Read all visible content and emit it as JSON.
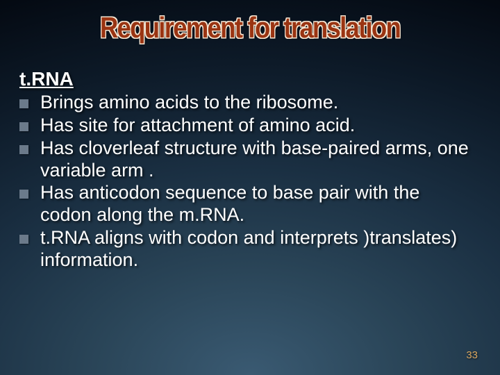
{
  "title": "Requirement for translation",
  "section_header": "t.RNA",
  "bullets": [
    "Brings amino acids to the ribosome.",
    "Has site for attachment of amino acid.",
    "Has cloverleaf structure with base-paired arms, one variable arm .",
    "Has anticodon sequence to base pair with the codon along the m.RNA.",
    "t.RNA aligns with codon and interprets )translates) information."
  ],
  "page_number": "33",
  "colors": {
    "title_fill": "#9a3412",
    "title_outline": "#f5e6d3",
    "text": "#ffffff",
    "bullet_marker": "#6b7a8a",
    "page_number": "#d9a760"
  },
  "typography": {
    "title_fontsize": 42,
    "section_header_fontsize": 28,
    "bullet_fontsize": 27,
    "page_number_fontsize": 15
  }
}
